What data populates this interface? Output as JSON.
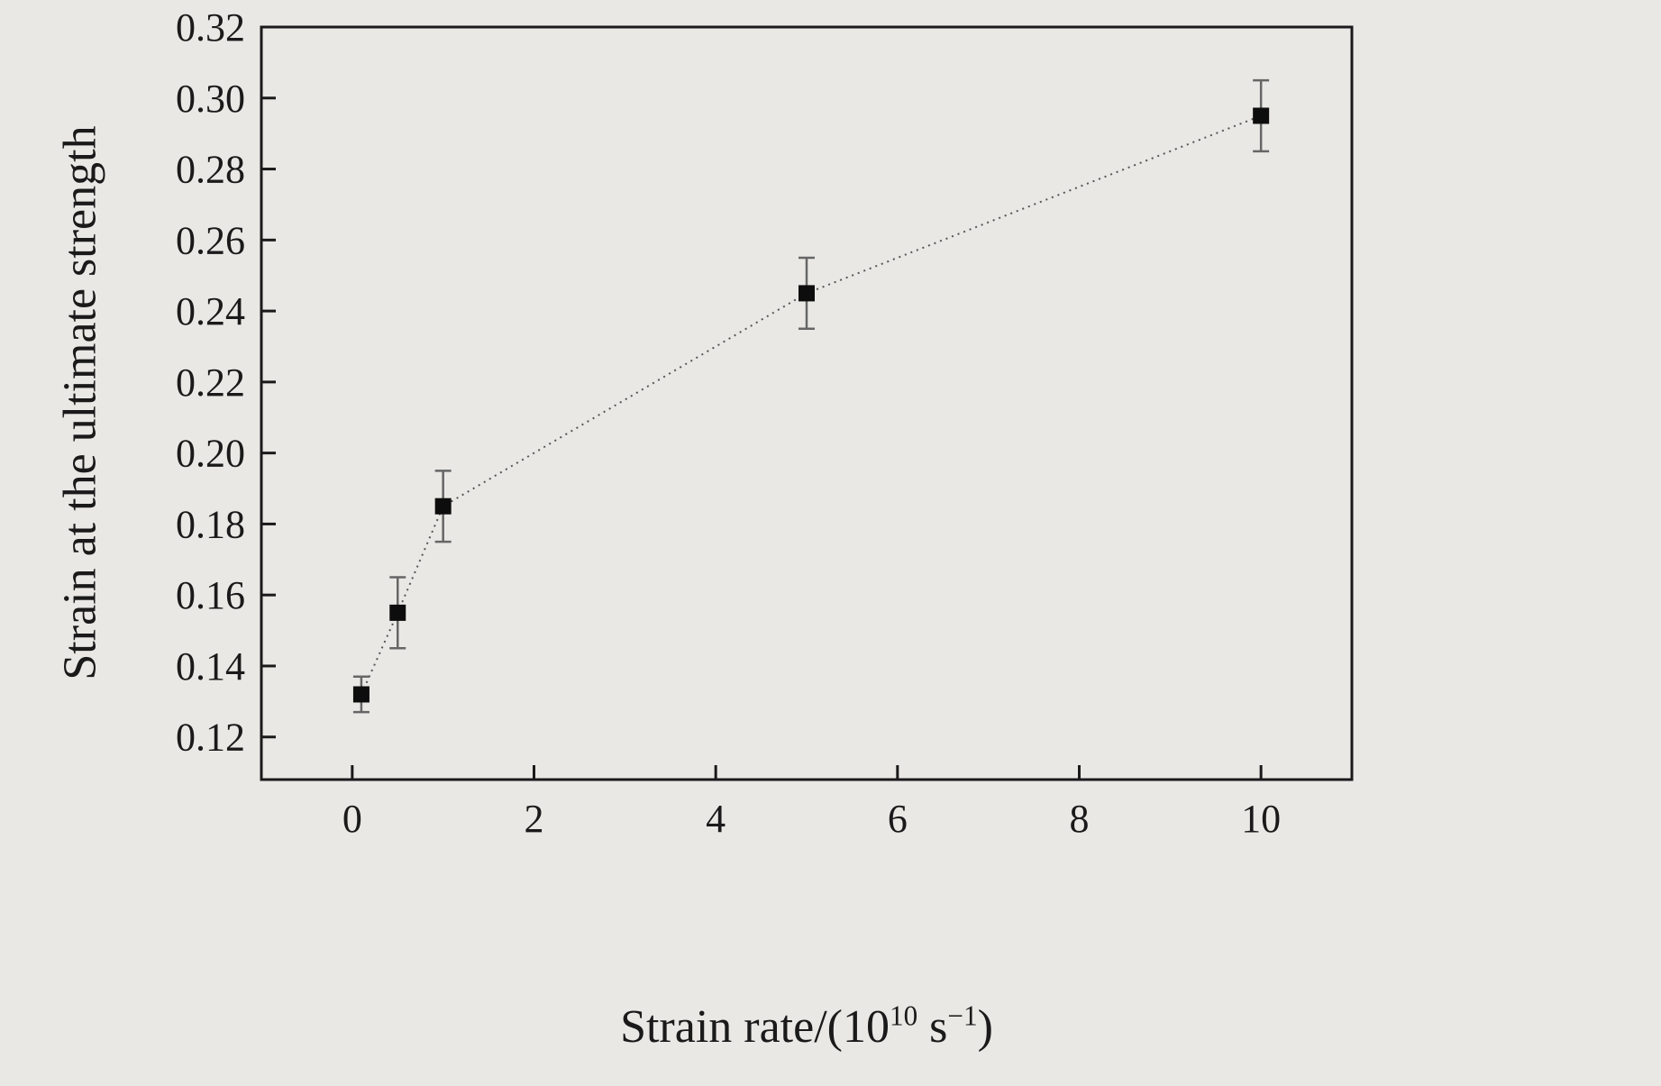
{
  "figure": {
    "background": "#e9e8e5",
    "frame_color": "#1a1a1a"
  },
  "chart_data": {
    "type": "scatter",
    "title": "",
    "xlabel": "Strain rate/(10^10 s^-1)",
    "xlabel_parts": {
      "pre": "Strain rate/(10",
      "exp1": "10",
      "mid": " s",
      "exp2": "−1",
      "post": ")"
    },
    "ylabel": "Strain at the ultimate strength",
    "series": [
      {
        "name": "strain-at-ultimate-strength",
        "x": [
          0.1,
          0.5,
          1,
          5,
          10
        ],
        "y": [
          0.132,
          0.155,
          0.185,
          0.245,
          0.295
        ],
        "yerr": [
          0.005,
          0.01,
          0.01,
          0.01,
          0.01
        ],
        "marker": "filled-square",
        "line_style": "dotted"
      }
    ],
    "xlim": [
      -1,
      11
    ],
    "ylim": [
      0.108,
      0.32
    ],
    "xticks": [
      0,
      2,
      4,
      6,
      8,
      10
    ],
    "yticks": [
      0.12,
      0.14,
      0.16,
      0.18,
      0.2,
      0.22,
      0.24,
      0.26,
      0.28,
      0.3,
      0.32
    ],
    "ytick_decimals": 2,
    "grid": false,
    "legend": "none",
    "colors": {
      "marker": "#0d0d0d",
      "line": "#555555",
      "error_bar": "#666666",
      "axis": "#1a1a1a",
      "tick_label": "#1a1a1a",
      "background": "#e9e8e5"
    }
  }
}
